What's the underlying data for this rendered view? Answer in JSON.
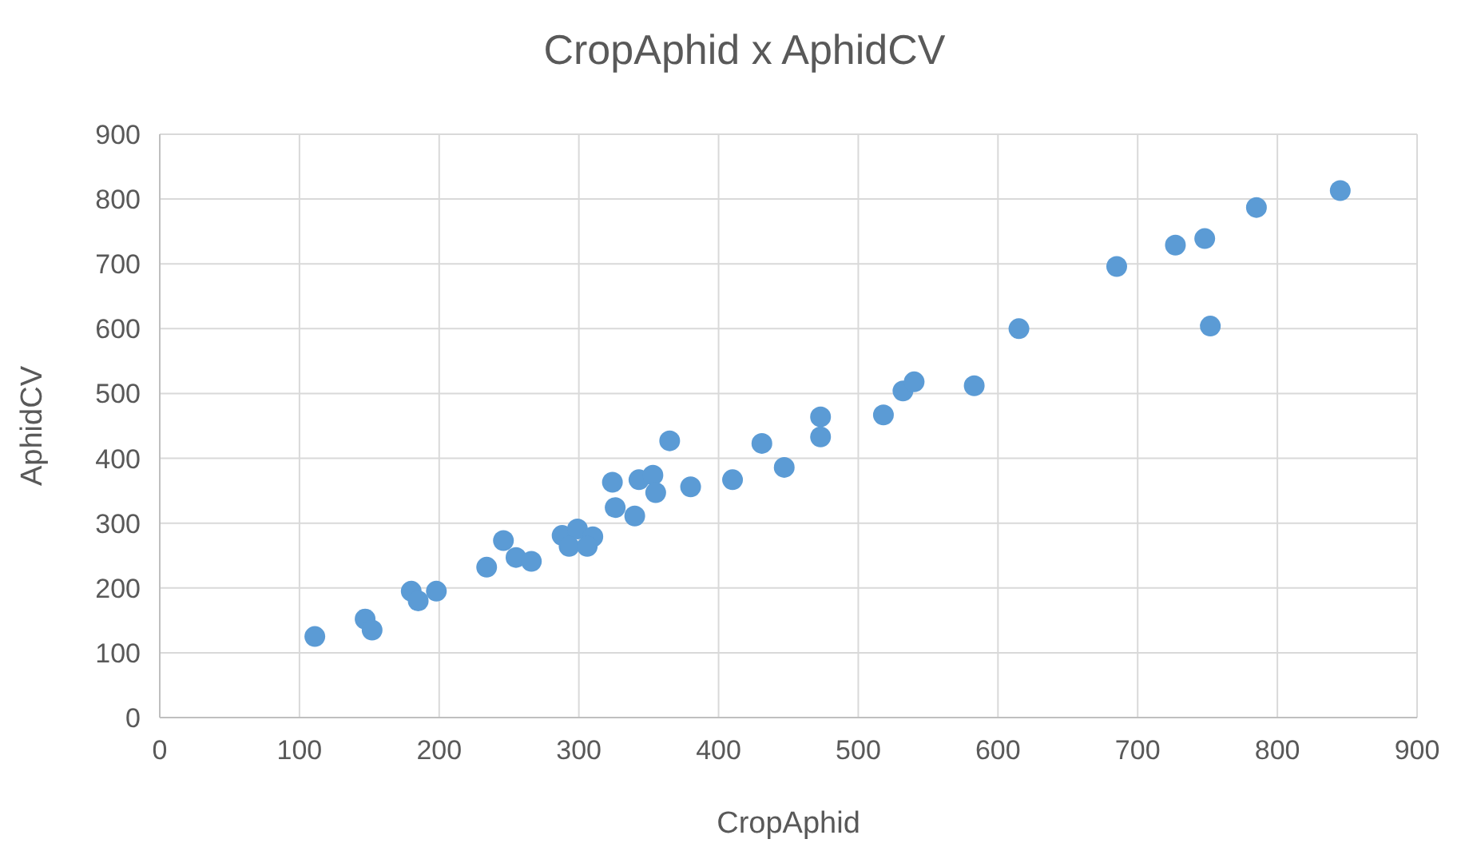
{
  "chart_data": {
    "type": "scatter",
    "title": "CropAphid x AphidCV",
    "xlabel": "CropAphid",
    "ylabel": "AphidCV",
    "xlim": [
      0,
      900
    ],
    "xticks": [
      0,
      100,
      200,
      300,
      400,
      500,
      600,
      700,
      800,
      900
    ],
    "ylim": [
      0,
      900
    ],
    "yticks": [
      0,
      100,
      200,
      300,
      400,
      500,
      600,
      700,
      800,
      900
    ],
    "grid": true,
    "marker": "circle",
    "series": [
      {
        "color": "#5b9bd5",
        "x": [
          111,
          147,
          152,
          180,
          185,
          198,
          234,
          246,
          255,
          266,
          288,
          299,
          310,
          293,
          306,
          324,
          326,
          340,
          343,
          353,
          355,
          365,
          380,
          410,
          431,
          447,
          473,
          473,
          518,
          532,
          540,
          583,
          615,
          685,
          727,
          748,
          752,
          785,
          845
        ],
        "values": [
          125,
          152,
          135,
          195,
          180,
          195,
          232,
          273,
          247,
          241,
          281,
          291,
          279,
          264,
          264,
          363,
          324,
          311,
          367,
          374,
          347,
          427,
          356,
          367,
          423,
          386,
          464,
          433,
          467,
          504,
          518,
          512,
          600,
          696,
          729,
          739,
          604,
          787,
          813
        ]
      }
    ]
  }
}
